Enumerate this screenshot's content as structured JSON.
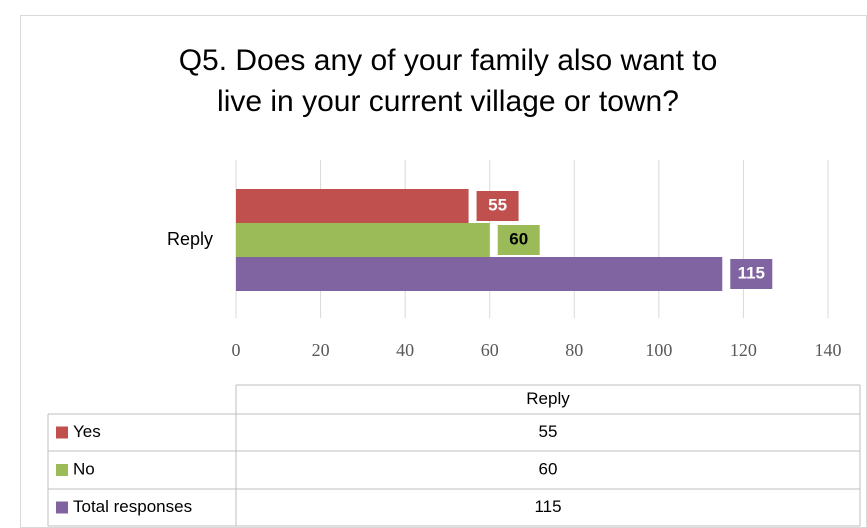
{
  "chart_data": {
    "type": "bar",
    "orientation": "horizontal",
    "title": "Q5. Does any of your family also want to live in your current village or town?",
    "title_lines": [
      "Q5. Does any of your family also want to",
      "live in your current village or town?"
    ],
    "categories": [
      "Reply"
    ],
    "series": [
      {
        "name": "Yes",
        "color": "#c0504d",
        "label_color": "#ffffff",
        "values": [
          55
        ]
      },
      {
        "name": "No",
        "color": "#9bbb59",
        "label_color": "#000000",
        "values": [
          60
        ]
      },
      {
        "name": "Total responses",
        "color": "#8064a2",
        "label_color": "#ffffff",
        "values": [
          115
        ]
      }
    ],
    "xlim": [
      0,
      140
    ],
    "xticks": [
      0,
      20,
      40,
      60,
      80,
      100,
      120,
      140
    ],
    "grid": true,
    "data_table": true
  }
}
